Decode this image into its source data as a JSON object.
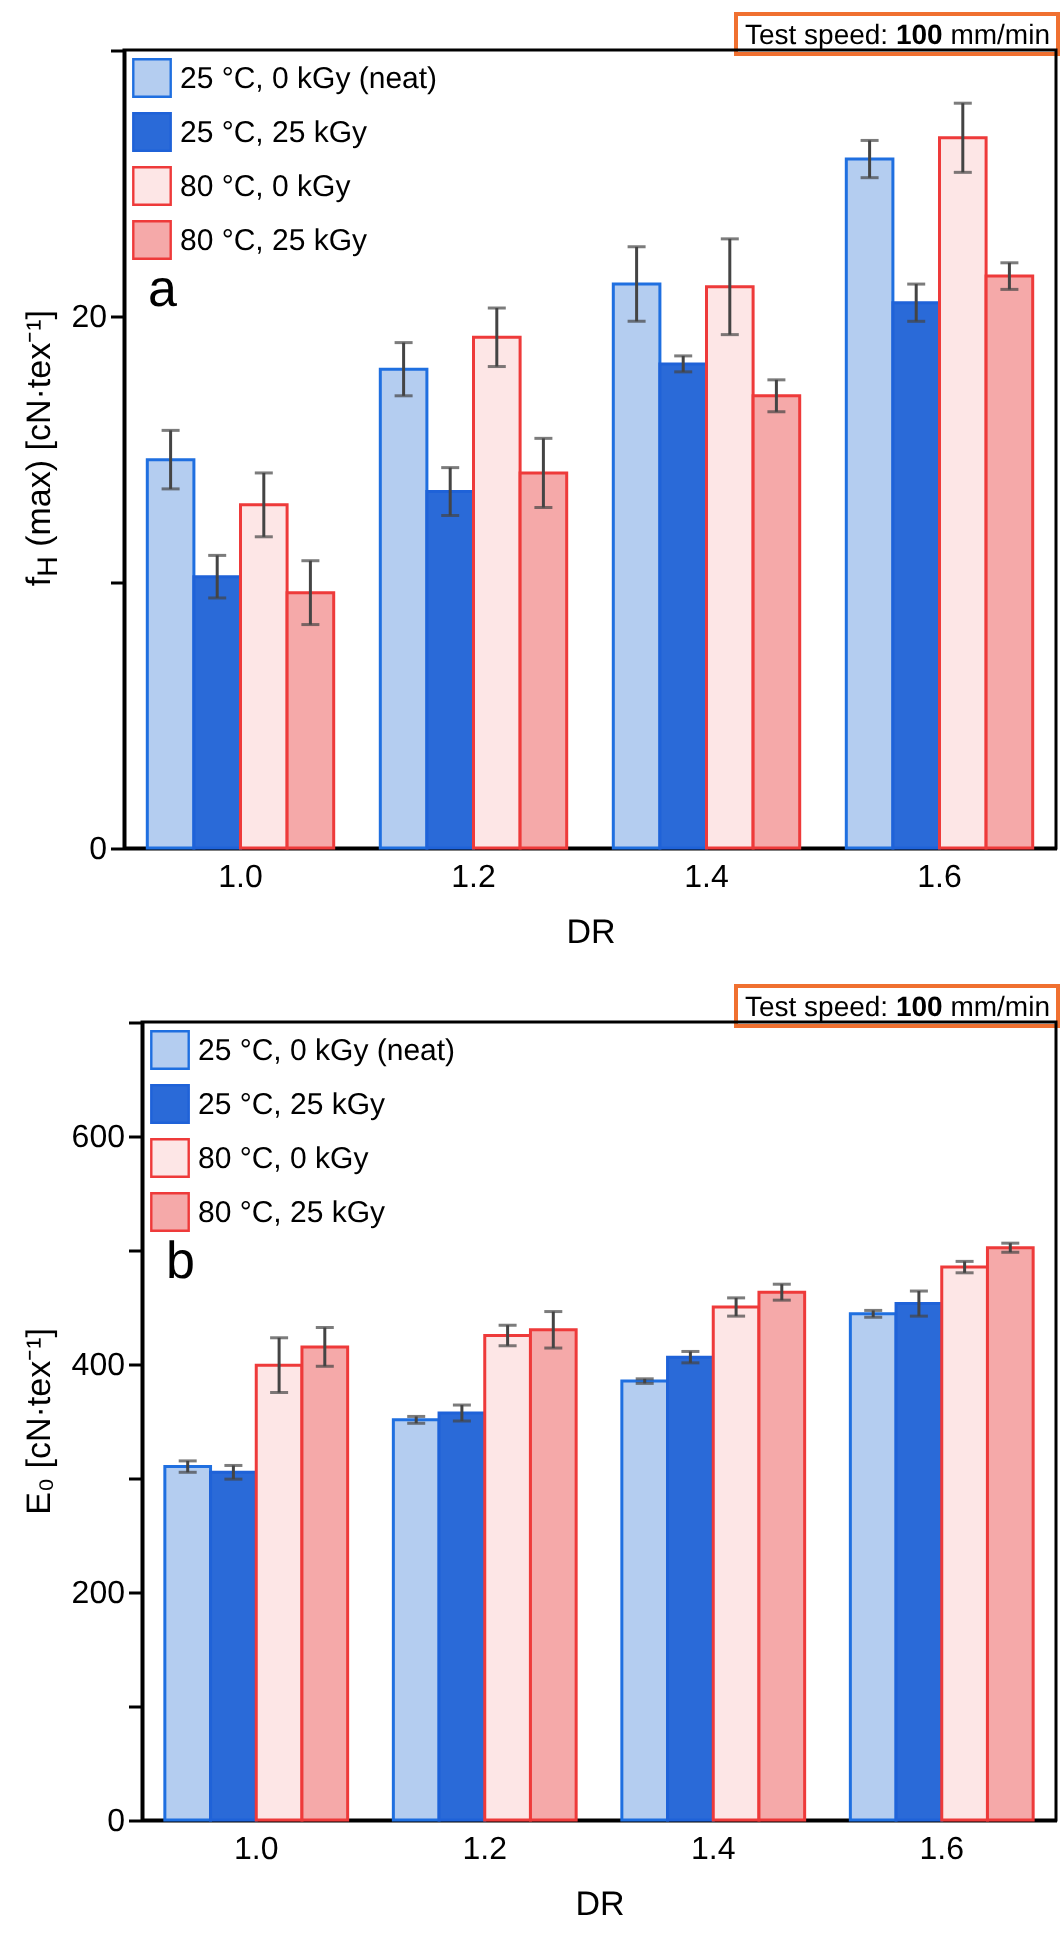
{
  "chart_data": [
    {
      "type": "bar",
      "title": null,
      "annotations": [
        "Test speed: 100 mm/min",
        "a"
      ],
      "xlabel": "DR",
      "ylabel": "f$_{H}$ (max) [cN·tex⁻¹]",
      "categories": [
        "1.0",
        "1.2",
        "1.4",
        "1.6"
      ],
      "series": [
        {
          "name": "25 °C, 0 kGy (neat)",
          "color": "#b4cdf0",
          "values": [
            14.6,
            18.0,
            21.2,
            25.9
          ],
          "errors": [
            1.1,
            1.0,
            1.4,
            0.7
          ]
        },
        {
          "name": "25 °C, 25 kGy",
          "color": "#2a6ad8",
          "values": [
            10.2,
            13.4,
            18.2,
            20.5
          ],
          "errors": [
            0.8,
            0.9,
            0.3,
            0.7
          ]
        },
        {
          "name": "80 °C, 0 kGy",
          "color": "#fde6e6",
          "values": [
            12.9,
            19.2,
            21.1,
            26.7
          ],
          "errors": [
            1.2,
            1.1,
            1.8,
            1.3
          ]
        },
        {
          "name": "80 °C, 25 kGy",
          "color": "#f5a9a9",
          "values": [
            9.6,
            14.1,
            17.0,
            21.5
          ],
          "errors": [
            1.2,
            1.3,
            0.6,
            0.5
          ]
        }
      ],
      "ylim": [
        0,
        30
      ],
      "yticks": [
        0,
        {
          "value": 10,
          "label": null
        },
        20,
        {
          "value": 30,
          "label": null
        }
      ],
      "grid": false,
      "legend": "top left"
    },
    {
      "type": "bar",
      "annotations": [
        "Test speed: 100 mm/min",
        "b"
      ],
      "xlabel": "DR",
      "ylabel": "E₀ [cN·tex⁻¹]",
      "categories": [
        "1.0",
        "1.2",
        "1.4",
        "1.6"
      ],
      "series": [
        {
          "name": "25 °C, 0 kGy (neat)",
          "color": "#b4cdf0",
          "values": [
            310,
            351,
            385,
            444
          ],
          "errors": [
            5,
            3,
            2,
            3
          ]
        },
        {
          "name": "25 °C, 25 kGy",
          "color": "#2a6ad8",
          "values": [
            305,
            357,
            406,
            453
          ],
          "errors": [
            6,
            7,
            5,
            11
          ]
        },
        {
          "name": "80 °C, 0 kGy",
          "color": "#fde6e6",
          "values": [
            399,
            425,
            450,
            485
          ],
          "errors": [
            24,
            9,
            8,
            5
          ]
        },
        {
          "name": "80 °C, 25 kGy",
          "color": "#f5a9a9",
          "values": [
            415,
            430,
            463,
            502
          ],
          "errors": [
            17,
            16,
            7,
            4
          ]
        }
      ],
      "ylim": [
        0,
        700
      ],
      "yticks": [
        0,
        {
          "value": 100,
          "label": null
        },
        200,
        {
          "value": 300,
          "label": null
        },
        400,
        {
          "value": 500,
          "label": null
        },
        600,
        {
          "value": 700,
          "label": null
        }
      ],
      "grid": false,
      "legend": "top left"
    }
  ]
}
